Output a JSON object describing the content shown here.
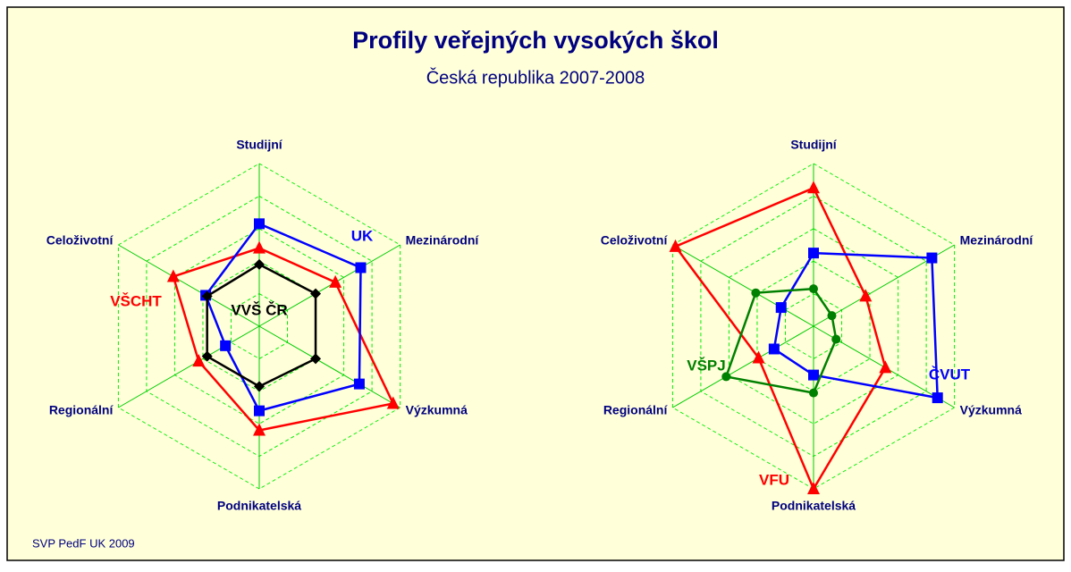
{
  "title": "Profily veřejných vysokých škol",
  "subtitle": "Česká republika 2007-2008",
  "footer": "SVP PedF UK 2009",
  "chart_data": [
    {
      "type": "radar",
      "categories": [
        "Studijní",
        "Mezinárodní",
        "Výzkumná",
        "Podnikatelská",
        "Regionální",
        "Celoživotní"
      ],
      "rlim": [
        0,
        100
      ],
      "rticks": [
        20,
        40,
        60,
        80,
        100
      ],
      "grid": true,
      "series": [
        {
          "name": "VŠCHT",
          "color": "#ff0000",
          "marker": "triangle",
          "values": [
            48,
            54,
            95,
            64,
            43,
            61
          ]
        },
        {
          "name": "UK",
          "color": "#0000ff",
          "marker": "square",
          "values": [
            63,
            72,
            71,
            52,
            24,
            38
          ]
        },
        {
          "name": "VVŠ ČR",
          "color": "#000000",
          "marker": "diamond",
          "values": [
            38,
            40,
            40,
            37,
            37,
            37
          ]
        }
      ]
    },
    {
      "type": "radar",
      "categories": [
        "Studijní",
        "Mezinárodní",
        "Výzkumná",
        "Podnikatelská",
        "Regionální",
        "Celoživotní"
      ],
      "rlim": [
        0,
        100
      ],
      "rticks": [
        20,
        40,
        60,
        80,
        100
      ],
      "grid": true,
      "series": [
        {
          "name": "VFU",
          "color": "#ff0000",
          "marker": "triangle",
          "values": [
            85,
            37,
            51,
            100,
            39,
            98
          ]
        },
        {
          "name": "ČVUT",
          "color": "#0000ff",
          "marker": "square",
          "values": [
            45,
            84,
            88,
            30,
            28,
            23
          ]
        },
        {
          "name": "VŠPJ",
          "color": "#008000",
          "marker": "circle",
          "values": [
            23,
            13,
            16,
            41,
            62,
            41
          ]
        }
      ]
    }
  ]
}
